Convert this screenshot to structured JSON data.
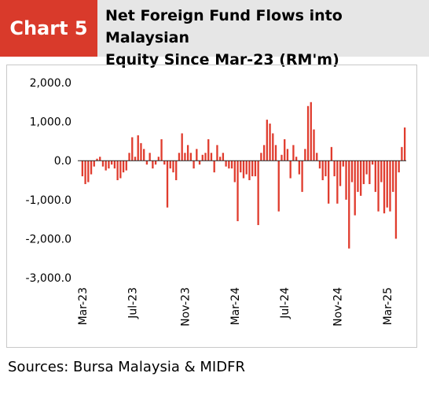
{
  "header": {
    "badge": "Chart 5",
    "title_line1": "Net Foreign Fund Flows into Malaysian",
    "title_line2": "Equity Since Mar-23 (RM'm)"
  },
  "source_text": "Sources: Bursa Malaysia & MIDFR",
  "colors": {
    "bar": "#e03c2e",
    "badge_bg": "#d93a2b",
    "title_bg": "#e6e6e6"
  },
  "chart_data": {
    "type": "bar",
    "title": "Net Foreign Fund Flows into Malaysian Equity Since Mar-23 (RM'm)",
    "ylim": [
      -3000,
      2000
    ],
    "yticks": [
      2000,
      1000,
      0,
      -1000,
      -2000,
      -3000
    ],
    "ytick_labels": [
      "2,000.0",
      "1,000.0",
      "0.0",
      "-1,000.0",
      "-2,000.0",
      "-3,000.0"
    ],
    "xticks": [
      {
        "label": "Mar-23",
        "index": 0
      },
      {
        "label": "Jul-23",
        "index": 17
      },
      {
        "label": "Nov-23",
        "index": 35
      },
      {
        "label": "Mar-24",
        "index": 52
      },
      {
        "label": "Jul-24",
        "index": 69
      },
      {
        "label": "Nov-24",
        "index": 87
      },
      {
        "label": "Mar-25",
        "index": 104
      }
    ],
    "grid": false,
    "legend": "none",
    "frequency": "weekly",
    "values": [
      -400,
      -600,
      -550,
      -350,
      -150,
      50,
      100,
      -150,
      -250,
      -200,
      -100,
      -200,
      -500,
      -450,
      -300,
      -250,
      200,
      600,
      100,
      650,
      450,
      300,
      -100,
      200,
      -200,
      -100,
      100,
      550,
      -100,
      -1200,
      -200,
      -300,
      -500,
      200,
      700,
      200,
      400,
      200,
      -200,
      300,
      -100,
      150,
      200,
      550,
      200,
      -300,
      400,
      100,
      200,
      -150,
      -200,
      -200,
      -550,
      -1550,
      -300,
      -450,
      -350,
      -500,
      -400,
      -400,
      -1650,
      200,
      400,
      1050,
      950,
      700,
      400,
      -1300,
      150,
      550,
      300,
      -450,
      400,
      100,
      -350,
      -800,
      300,
      1400,
      1500,
      800,
      200,
      -200,
      -500,
      -400,
      -1100,
      350,
      -400,
      -1100,
      -650,
      -150,
      -1000,
      -2250,
      -550,
      -1400,
      -800,
      -900,
      -600,
      -350,
      -600,
      -100,
      -800,
      -1300,
      -550,
      -1350,
      -1200,
      -1300,
      -800,
      -2000,
      -300,
      350,
      850
    ]
  }
}
